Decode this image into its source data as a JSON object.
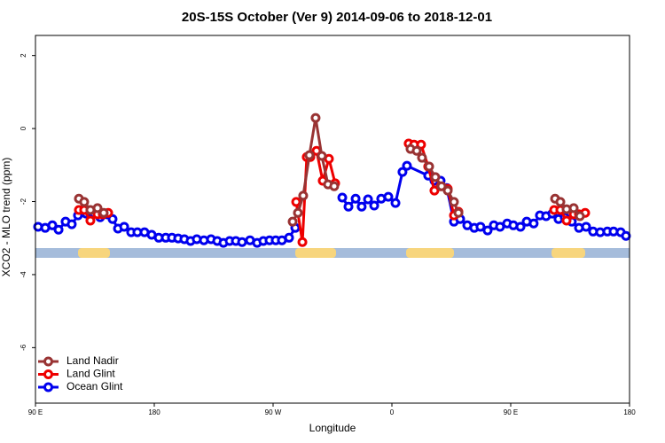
{
  "chart_data": {
    "type": "line",
    "title": "20S-15S October (Ver 9)   2014-09-06 to 2018-12-01",
    "xlabel": "Longitude",
    "ylabel": "XCO2 - MLO trend (ppm)",
    "xlim": [
      90,
      540
    ],
    "ylim": [
      -7.52,
      2.55
    ],
    "xticks": [
      {
        "value": 90,
        "label": "90 E"
      },
      180,
      {
        "value": 270,
        "label": "90 W"
      },
      {
        "value": 360,
        "label": "0"
      },
      {
        "value": 450,
        "label": "90 E"
      },
      {
        "value": 540,
        "label": "180"
      }
    ],
    "yticks": [
      -6,
      -4,
      -2,
      0,
      2
    ],
    "legend": "bottom-left",
    "series": [
      {
        "name": "Land Nadir",
        "color": "#993333",
        "x": [
          122.9,
          126.9,
          131.6,
          137.0,
          141.7,
          200,
          284.8,
          288.8,
          292.8,
          297.5,
          302.2,
          306.9,
          311.6,
          316.3,
          340,
          374.1,
          378.8,
          382.8,
          388.2,
          392.9,
          397.6,
          402.3,
          407.0,
          410.4,
          450,
          483.6,
          487.6,
          492.3,
          497.7,
          502.4
        ],
        "values": [
          -1.92,
          -2.01,
          -2.23,
          -2.18,
          -2.31,
          null,
          -2.55,
          -2.31,
          -1.84,
          -0.73,
          0.29,
          -0.75,
          -1.53,
          -1.58,
          null,
          -0.56,
          -0.61,
          -0.8,
          -1.04,
          -1.33,
          -1.58,
          -1.7,
          -2.01,
          -2.31,
          null,
          -1.92,
          -2.01,
          -2.21,
          -2.18,
          -2.4
        ]
      },
      {
        "name": "Land Glint",
        "color": "#ee0000",
        "x": [
          122.9,
          126.9,
          131.6,
          137.0,
          141.0,
          145.1,
          200,
          287.5,
          292.2,
          295.5,
          298.2,
          302.9,
          307.6,
          312.3,
          317.0,
          340,
          372.7,
          376.8,
          382.1,
          387.5,
          392.2,
          396.9,
          402.3,
          407.0,
          410.4,
          450,
          482.9,
          487.6,
          492.3,
          497.7,
          501.7,
          506.4
        ],
        "values": [
          -2.23,
          -2.23,
          -2.52,
          -2.35,
          -2.35,
          -2.31,
          null,
          -2.01,
          -3.11,
          -0.78,
          -0.78,
          -0.61,
          -1.43,
          -0.83,
          -1.5,
          null,
          -0.41,
          -0.44,
          -0.44,
          -1.04,
          -1.7,
          -1.58,
          -1.65,
          -2.38,
          -2.28,
          null,
          -2.23,
          -2.23,
          -2.52,
          -2.35,
          -2.35,
          -2.31
        ]
      },
      {
        "name": "Ocean Glint",
        "color": "#0000ee",
        "x": [
          92.0,
          97.4,
          102.8,
          107.5,
          112.8,
          117.5,
          122.2,
          128.3,
          134.3,
          139.0,
          144.4,
          148.4,
          152.5,
          157.2,
          162.5,
          167.2,
          172.6,
          178.0,
          183.4,
          188.7,
          193.4,
          198.1,
          202.8,
          207.5,
          212.2,
          217.6,
          223.0,
          227.7,
          232.4,
          237.1,
          241.8,
          246.5,
          252.5,
          257.9,
          262.6,
          267.3,
          272.0,
          276.7,
          282.1,
          286.8,
          310,
          322.4,
          327.1,
          332.5,
          337.1,
          341.9,
          346.6,
          351.9,
          357.3,
          362.7,
          368.0,
          371.4,
          387.5,
          392.2,
          396.9,
          401.6,
          407.0,
          411.7,
          417.1,
          422.4,
          427.1,
          432.5,
          437.2,
          441.9,
          447.3,
          452.0,
          457.4,
          462.1,
          467.4,
          472.1,
          476.8,
          481.5,
          486.2,
          490.9,
          496.3,
          501.7,
          507.1,
          512.4,
          517.8,
          523.2,
          527.9,
          533.3,
          537.3
        ],
        "values": [
          -2.69,
          -2.72,
          -2.65,
          -2.77,
          -2.55,
          -2.62,
          -2.38,
          -2.33,
          -2.33,
          -2.43,
          -2.35,
          -2.48,
          -2.74,
          -2.69,
          -2.84,
          -2.84,
          -2.84,
          -2.91,
          -2.99,
          -2.99,
          -2.99,
          -3.01,
          -3.03,
          -3.08,
          -3.03,
          -3.06,
          -3.03,
          -3.08,
          -3.13,
          -3.08,
          -3.08,
          -3.11,
          -3.06,
          -3.13,
          -3.08,
          -3.06,
          -3.06,
          -3.06,
          -2.99,
          -2.72,
          null,
          -1.89,
          -2.14,
          -1.92,
          -2.14,
          -1.94,
          -2.11,
          -1.92,
          -1.87,
          -2.04,
          -1.19,
          -1.02,
          -1.29,
          -1.43,
          -1.43,
          -1.63,
          -2.55,
          -2.48,
          -2.65,
          -2.72,
          -2.69,
          -2.79,
          -2.65,
          -2.69,
          -2.6,
          -2.65,
          -2.69,
          -2.55,
          -2.6,
          -2.38,
          -2.4,
          -2.33,
          -2.48,
          -2.43,
          -2.55,
          -2.72,
          -2.69,
          -2.82,
          -2.84,
          -2.82,
          -2.82,
          -2.84,
          -2.94
        ]
      }
    ]
  }
}
